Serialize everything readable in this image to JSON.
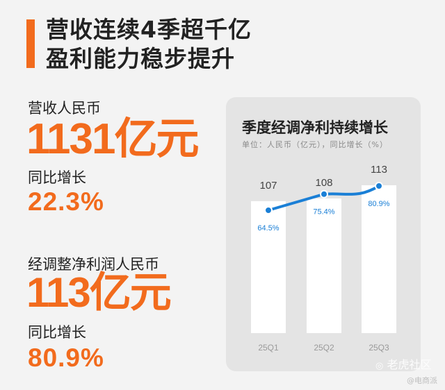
{
  "headline": {
    "line1": "营收连续4季超千亿",
    "line2": "盈利能力稳步提升"
  },
  "revenue": {
    "label": "营收人民币",
    "value": "1131亿元",
    "yoy_label": "同比增长",
    "yoy_value": "22.3%"
  },
  "profit": {
    "label": "经调整净利润人民币",
    "value": "113亿元",
    "yoy_label": "同比增长",
    "yoy_value": "80.9%"
  },
  "colors": {
    "accent": "#f26b1d",
    "line": "#1a7fd6",
    "bar": "#ffffff",
    "panel": "#e4e4e4"
  },
  "chart_data": {
    "type": "bar",
    "title": "季度经调净利持续增长",
    "subtitle": "单位：人民币（亿元），同比增长（%）",
    "categories": [
      "25Q1",
      "25Q2",
      "25Q3"
    ],
    "series": [
      {
        "values": [
          107,
          108,
          113
        ],
        "value_labels": [
          "107",
          "108",
          "113"
        ]
      },
      {
        "values": [
          64.5,
          75.4,
          80.9
        ],
        "value_labels": [
          "64.5%",
          "75.4%",
          "80.9%"
        ]
      }
    ],
    "grid": false,
    "legend": "none"
  },
  "watermark": {
    "text": "老虎社区",
    "subtext": "@电商派"
  }
}
